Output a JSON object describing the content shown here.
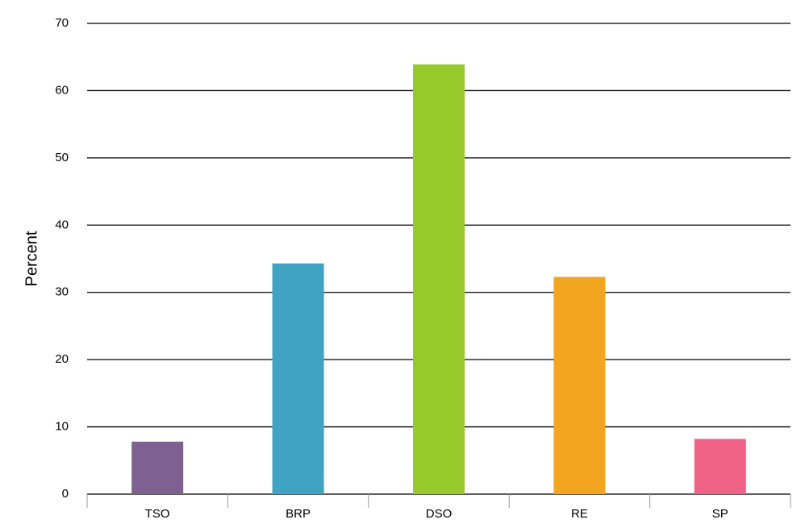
{
  "chart_data": {
    "type": "bar",
    "y_label": "Percent",
    "categories": [
      "TSO",
      "BRP",
      "DSO",
      "RE",
      "SP"
    ],
    "values": [
      7.8,
      34.3,
      63.9,
      32.3,
      8.2
    ],
    "colors": [
      "#7e6191",
      "#3fa3c1",
      "#96c92a",
      "#f4a51f",
      "#ef6285"
    ],
    "ylim": [
      0,
      70
    ],
    "yticks": [
      0,
      10,
      20,
      30,
      40,
      50,
      60,
      70
    ],
    "grid": true
  }
}
